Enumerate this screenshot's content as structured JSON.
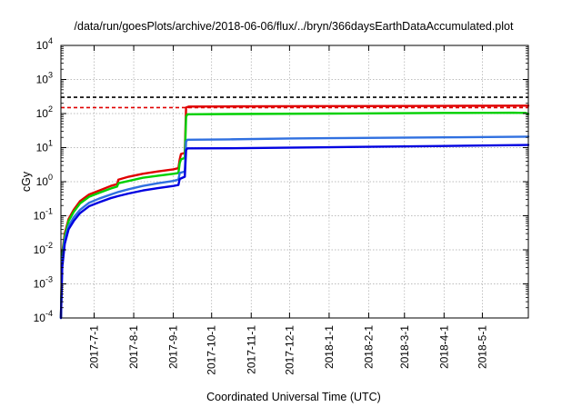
{
  "chart_data": {
    "type": "line",
    "title": "/data/run/goesPlots/archive/2018-06-06/flux/../bryn/366daysEarthDataAccumulated.plot",
    "xlabel": "Coordinated Universal Time (UTC)",
    "ylabel": "cGy",
    "x_scale": "time",
    "xlim": [
      "2017-06-05",
      "2018-06-06"
    ],
    "y_scale": "log",
    "ylim": [
      0.0001,
      10000
    ],
    "grid": true,
    "x_ticks": [
      "2017-7-1",
      "2017-8-1",
      "2017-9-1",
      "2017-10-1",
      "2017-11-1",
      "2017-12-1",
      "2018-1-1",
      "2018-2-1",
      "2018-3-1",
      "2018-4-1",
      "2018-5-1"
    ],
    "y_ticks": [
      {
        "value": 0.0001,
        "base": "10",
        "exp": "-4"
      },
      {
        "value": 0.001,
        "base": "10",
        "exp": "-3"
      },
      {
        "value": 0.01,
        "base": "10",
        "exp": "-2"
      },
      {
        "value": 0.1,
        "base": "10",
        "exp": "-1"
      },
      {
        "value": 1,
        "base": "10",
        "exp": "0"
      },
      {
        "value": 10,
        "base": "10",
        "exp": "1"
      },
      {
        "value": 100,
        "base": "10",
        "exp": "2"
      },
      {
        "value": 1000,
        "base": "10",
        "exp": "3"
      },
      {
        "value": 10000,
        "base": "10",
        "exp": "4"
      }
    ],
    "reference_lines": [
      {
        "y": 300,
        "color": "#000000",
        "style": "dashed"
      },
      {
        "y": 150,
        "color": "#e00000",
        "style": "dashed"
      }
    ],
    "series": [
      {
        "color": "#e00000",
        "points": [
          [
            "2017-06-05",
            0.0001
          ],
          [
            "2017-06-06",
            0.008
          ],
          [
            "2017-06-08",
            0.03
          ],
          [
            "2017-06-11",
            0.08
          ],
          [
            "2017-06-15",
            0.15
          ],
          [
            "2017-06-20",
            0.27
          ],
          [
            "2017-06-27",
            0.42
          ],
          [
            "2017-07-05",
            0.55
          ],
          [
            "2017-07-14",
            0.75
          ],
          [
            "2017-07-19",
            0.85
          ],
          [
            "2017-07-20",
            1.15
          ],
          [
            "2017-07-28",
            1.4
          ],
          [
            "2017-08-08",
            1.7
          ],
          [
            "2017-08-20",
            2.0
          ],
          [
            "2017-09-01",
            2.3
          ],
          [
            "2017-09-05",
            2.5
          ],
          [
            "2017-09-06",
            4.5
          ],
          [
            "2017-09-07",
            6.5
          ],
          [
            "2017-09-10",
            7
          ],
          [
            "2017-09-11",
            150
          ],
          [
            "2017-09-13",
            160
          ],
          [
            "2017-10-15",
            162
          ],
          [
            "2018-01-01",
            165
          ],
          [
            "2018-04-01",
            168
          ],
          [
            "2018-06-06",
            170
          ]
        ]
      },
      {
        "color": "#00d000",
        "points": [
          [
            "2017-06-05",
            0.0001
          ],
          [
            "2017-06-06",
            0.007
          ],
          [
            "2017-06-08",
            0.025
          ],
          [
            "2017-06-11",
            0.07
          ],
          [
            "2017-06-15",
            0.13
          ],
          [
            "2017-06-20",
            0.23
          ],
          [
            "2017-06-27",
            0.36
          ],
          [
            "2017-07-05",
            0.47
          ],
          [
            "2017-07-14",
            0.63
          ],
          [
            "2017-07-19",
            0.72
          ],
          [
            "2017-07-20",
            0.9
          ],
          [
            "2017-07-28",
            1.05
          ],
          [
            "2017-08-08",
            1.3
          ],
          [
            "2017-08-20",
            1.5
          ],
          [
            "2017-09-01",
            1.7
          ],
          [
            "2017-09-05",
            1.8
          ],
          [
            "2017-09-06",
            3.5
          ],
          [
            "2017-09-07",
            4.5
          ],
          [
            "2017-09-10",
            5
          ],
          [
            "2017-09-11",
            80
          ],
          [
            "2017-09-12",
            95
          ],
          [
            "2017-10-15",
            97
          ],
          [
            "2018-01-01",
            100
          ],
          [
            "2018-04-01",
            104
          ],
          [
            "2018-05-25",
            106
          ],
          [
            "2018-06-04",
            104
          ],
          [
            "2018-06-06",
            98
          ]
        ]
      },
      {
        "color": "#3070e0",
        "points": [
          [
            "2017-06-05",
            0.0001
          ],
          [
            "2017-06-06",
            0.005
          ],
          [
            "2017-06-08",
            0.02
          ],
          [
            "2017-06-11",
            0.05
          ],
          [
            "2017-06-15",
            0.09
          ],
          [
            "2017-06-20",
            0.15
          ],
          [
            "2017-06-27",
            0.24
          ],
          [
            "2017-07-05",
            0.32
          ],
          [
            "2017-07-14",
            0.42
          ],
          [
            "2017-07-20",
            0.5
          ],
          [
            "2017-07-28",
            0.6
          ],
          [
            "2017-08-08",
            0.75
          ],
          [
            "2017-08-20",
            0.9
          ],
          [
            "2017-09-01",
            1.05
          ],
          [
            "2017-09-05",
            1.15
          ],
          [
            "2017-09-06",
            1.8
          ],
          [
            "2017-09-10",
            2.0
          ],
          [
            "2017-09-11",
            15
          ],
          [
            "2017-09-12",
            17
          ],
          [
            "2017-10-15",
            17.5
          ],
          [
            "2017-12-01",
            18.5
          ],
          [
            "2018-01-01",
            19
          ],
          [
            "2018-04-01",
            20
          ],
          [
            "2018-06-06",
            21
          ]
        ]
      },
      {
        "color": "#0000e0",
        "points": [
          [
            "2017-06-05",
            0.0001
          ],
          [
            "2017-06-06",
            0.003
          ],
          [
            "2017-06-08",
            0.015
          ],
          [
            "2017-06-11",
            0.04
          ],
          [
            "2017-06-15",
            0.07
          ],
          [
            "2017-06-20",
            0.12
          ],
          [
            "2017-06-27",
            0.19
          ],
          [
            "2017-07-05",
            0.25
          ],
          [
            "2017-07-14",
            0.33
          ],
          [
            "2017-07-20",
            0.38
          ],
          [
            "2017-07-28",
            0.45
          ],
          [
            "2017-08-08",
            0.55
          ],
          [
            "2017-08-20",
            0.65
          ],
          [
            "2017-09-01",
            0.75
          ],
          [
            "2017-09-05",
            0.8
          ],
          [
            "2017-09-06",
            1.2
          ],
          [
            "2017-09-10",
            1.4
          ],
          [
            "2017-09-11",
            8.5
          ],
          [
            "2017-09-12",
            9.5
          ],
          [
            "2017-10-15",
            9.6
          ],
          [
            "2018-01-01",
            10.3
          ],
          [
            "2018-04-01",
            11.2
          ],
          [
            "2018-06-06",
            12
          ]
        ]
      }
    ]
  }
}
